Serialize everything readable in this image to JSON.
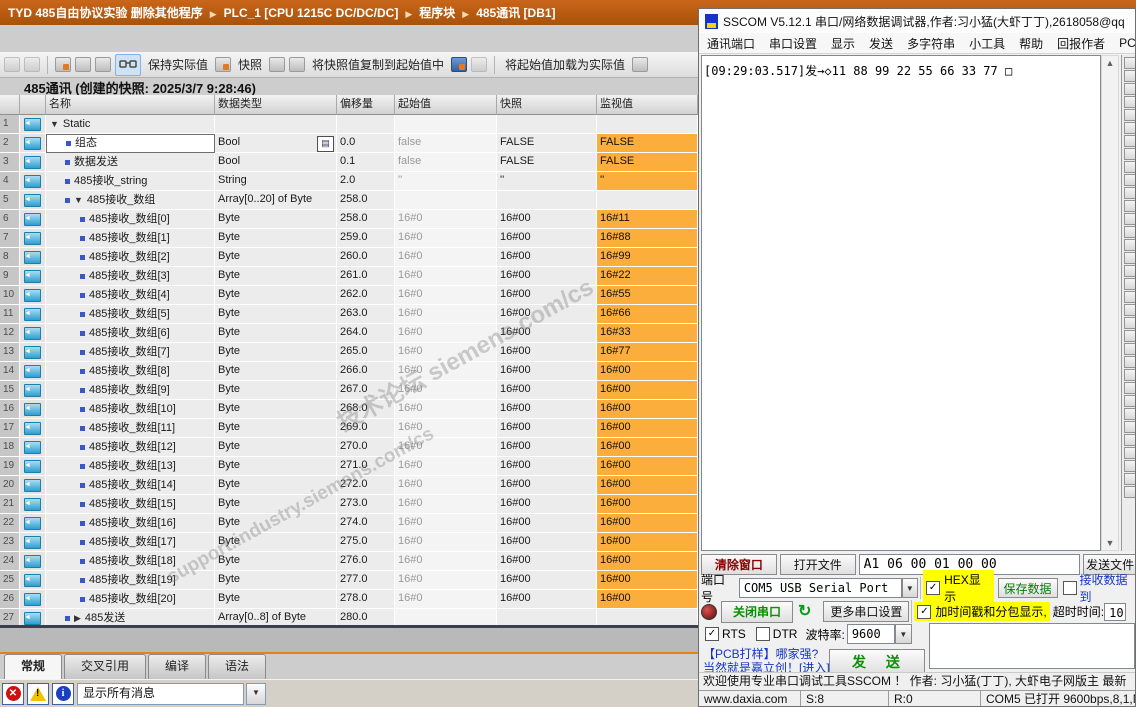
{
  "tia": {
    "breadcrumb": {
      "project": "TYD 485自由协议实验 删除其他程序",
      "items": [
        "PLC_1 [CPU 1215C DC/DC/DC]",
        "程序块",
        "485通讯 [DB1]"
      ]
    },
    "toolbar": {
      "keep_actual": "保持实际值",
      "snapshot": "快照",
      "copy_snapshot": "将快照值复制到起始值中",
      "load_start": "将起始值加载为实际值"
    },
    "title": "485通讯 (创建的快照: 2025/3/7 9:28:46)",
    "table": {
      "headers": [
        "名称",
        "数据类型",
        "偏移量",
        "起始值",
        "快照",
        "监视值"
      ],
      "rows": [
        {
          "n": "1",
          "name": "Static",
          "lvl": 0,
          "arrow": "down",
          "bullet": false,
          "type": "",
          "off": "",
          "start": "",
          "snap": "",
          "mon": null
        },
        {
          "n": "2",
          "name": "组态",
          "lvl": 1,
          "arrow": "",
          "bullet": true,
          "type": "Bool",
          "off": "0.0",
          "start": "false",
          "snap": "FALSE",
          "mon": "FALSE",
          "editing": true
        },
        {
          "n": "3",
          "name": "数据发送",
          "lvl": 1,
          "arrow": "",
          "bullet": true,
          "type": "Bool",
          "off": "0.1",
          "start": "false",
          "snap": "FALSE",
          "mon": "FALSE"
        },
        {
          "n": "4",
          "name": "485接收_string",
          "lvl": 1,
          "arrow": "",
          "bullet": true,
          "type": "String",
          "off": "2.0",
          "start": "''",
          "snap": "''",
          "mon": "''"
        },
        {
          "n": "5",
          "name": "485接收_数组",
          "lvl": 1,
          "arrow": "down",
          "bullet": true,
          "type": "Array[0..20] of Byte",
          "off": "258.0",
          "start": "",
          "snap": "",
          "mon": null
        },
        {
          "n": "6",
          "name": "485接收_数组[0]",
          "lvl": 2,
          "arrow": "",
          "bullet": true,
          "type": "Byte",
          "off": "258.0",
          "start": "16#0",
          "snap": "16#00",
          "mon": "16#11"
        },
        {
          "n": "7",
          "name": "485接收_数组[1]",
          "lvl": 2,
          "arrow": "",
          "bullet": true,
          "type": "Byte",
          "off": "259.0",
          "start": "16#0",
          "snap": "16#00",
          "mon": "16#88"
        },
        {
          "n": "8",
          "name": "485接收_数组[2]",
          "lvl": 2,
          "arrow": "",
          "bullet": true,
          "type": "Byte",
          "off": "260.0",
          "start": "16#0",
          "snap": "16#00",
          "mon": "16#99"
        },
        {
          "n": "9",
          "name": "485接收_数组[3]",
          "lvl": 2,
          "arrow": "",
          "bullet": true,
          "type": "Byte",
          "off": "261.0",
          "start": "16#0",
          "snap": "16#00",
          "mon": "16#22"
        },
        {
          "n": "10",
          "name": "485接收_数组[4]",
          "lvl": 2,
          "arrow": "",
          "bullet": true,
          "type": "Byte",
          "off": "262.0",
          "start": "16#0",
          "snap": "16#00",
          "mon": "16#55"
        },
        {
          "n": "11",
          "name": "485接收_数组[5]",
          "lvl": 2,
          "arrow": "",
          "bullet": true,
          "type": "Byte",
          "off": "263.0",
          "start": "16#0",
          "snap": "16#00",
          "mon": "16#66"
        },
        {
          "n": "12",
          "name": "485接收_数组[6]",
          "lvl": 2,
          "arrow": "",
          "bullet": true,
          "type": "Byte",
          "off": "264.0",
          "start": "16#0",
          "snap": "16#00",
          "mon": "16#33"
        },
        {
          "n": "13",
          "name": "485接收_数组[7]",
          "lvl": 2,
          "arrow": "",
          "bullet": true,
          "type": "Byte",
          "off": "265.0",
          "start": "16#0",
          "snap": "16#00",
          "mon": "16#77"
        },
        {
          "n": "14",
          "name": "485接收_数组[8]",
          "lvl": 2,
          "arrow": "",
          "bullet": true,
          "type": "Byte",
          "off": "266.0",
          "start": "16#0",
          "snap": "16#00",
          "mon": "16#00"
        },
        {
          "n": "15",
          "name": "485接收_数组[9]",
          "lvl": 2,
          "arrow": "",
          "bullet": true,
          "type": "Byte",
          "off": "267.0",
          "start": "16#0",
          "snap": "16#00",
          "mon": "16#00"
        },
        {
          "n": "16",
          "name": "485接收_数组[10]",
          "lvl": 2,
          "arrow": "",
          "bullet": true,
          "type": "Byte",
          "off": "268.0",
          "start": "16#0",
          "snap": "16#00",
          "mon": "16#00"
        },
        {
          "n": "17",
          "name": "485接收_数组[11]",
          "lvl": 2,
          "arrow": "",
          "bullet": true,
          "type": "Byte",
          "off": "269.0",
          "start": "16#0",
          "snap": "16#00",
          "mon": "16#00"
        },
        {
          "n": "18",
          "name": "485接收_数组[12]",
          "lvl": 2,
          "arrow": "",
          "bullet": true,
          "type": "Byte",
          "off": "270.0",
          "start": "16#0",
          "snap": "16#00",
          "mon": "16#00"
        },
        {
          "n": "19",
          "name": "485接收_数组[13]",
          "lvl": 2,
          "arrow": "",
          "bullet": true,
          "type": "Byte",
          "off": "271.0",
          "start": "16#0",
          "snap": "16#00",
          "mon": "16#00"
        },
        {
          "n": "20",
          "name": "485接收_数组[14]",
          "lvl": 2,
          "arrow": "",
          "bullet": true,
          "type": "Byte",
          "off": "272.0",
          "start": "16#0",
          "snap": "16#00",
          "mon": "16#00"
        },
        {
          "n": "21",
          "name": "485接收_数组[15]",
          "lvl": 2,
          "arrow": "",
          "bullet": true,
          "type": "Byte",
          "off": "273.0",
          "start": "16#0",
          "snap": "16#00",
          "mon": "16#00"
        },
        {
          "n": "22",
          "name": "485接收_数组[16]",
          "lvl": 2,
          "arrow": "",
          "bullet": true,
          "type": "Byte",
          "off": "274.0",
          "start": "16#0",
          "snap": "16#00",
          "mon": "16#00"
        },
        {
          "n": "23",
          "name": "485接收_数组[17]",
          "lvl": 2,
          "arrow": "",
          "bullet": true,
          "type": "Byte",
          "off": "275.0",
          "start": "16#0",
          "snap": "16#00",
          "mon": "16#00"
        },
        {
          "n": "24",
          "name": "485接收_数组[18]",
          "lvl": 2,
          "arrow": "",
          "bullet": true,
          "type": "Byte",
          "off": "276.0",
          "start": "16#0",
          "snap": "16#00",
          "mon": "16#00"
        },
        {
          "n": "25",
          "name": "485接收_数组[19]",
          "lvl": 2,
          "arrow": "",
          "bullet": true,
          "type": "Byte",
          "off": "277.0",
          "start": "16#0",
          "snap": "16#00",
          "mon": "16#00"
        },
        {
          "n": "26",
          "name": "485接收_数组[20]",
          "lvl": 2,
          "arrow": "",
          "bullet": true,
          "type": "Byte",
          "off": "278.0",
          "start": "16#0",
          "snap": "16#00",
          "mon": "16#00"
        },
        {
          "n": "27",
          "name": "485发送",
          "lvl": 1,
          "arrow": "right",
          "bullet": true,
          "type": "Array[0..8] of Byte",
          "off": "280.0",
          "start": "",
          "snap": "",
          "mon": null
        }
      ]
    },
    "tabs": [
      {
        "label": "常规",
        "active": true
      },
      {
        "label": "交叉引用",
        "active": false
      },
      {
        "label": "编译",
        "active": false
      },
      {
        "label": "语法",
        "active": false
      }
    ],
    "message_filter": "显示所有消息",
    "watermarks": [
      "技术论坛 siemens.com/cs",
      "support.industry.siemens.com/cs"
    ]
  },
  "sscom": {
    "title": "SSCOM V5.12.1 串口/网络数据调试器,作者:习小猛(大虾丁丁),2618058@qq",
    "menu": [
      "通讯端口",
      "串口设置",
      "显示",
      "发送",
      "多字符串",
      "小工具",
      "帮助",
      "回报作者",
      "PCB"
    ],
    "terminal_line": "[09:29:03.517]发→◇11 88 99 22 55 66 33 77 □",
    "clear_button": "清除窗口",
    "open_file_button": "打开文件",
    "send_file_button": "发送文件",
    "send_input": "A1 06 00 01 00 00",
    "port_label": "端口号",
    "port_value": "COM5 USB Serial Port",
    "hex_display": "HEX显示",
    "save_data": "保存数据",
    "receive_to": "接收数据到",
    "close_port": "关闭串口",
    "more_settings": "更多串口设置",
    "timestamp_split": "加时间戳和分包显示,",
    "timeout_label": "超时时间:",
    "timeout_value": "10",
    "rts": "RTS",
    "dtr": "DTR",
    "baud_label": "波特率:",
    "baud_value": "9600",
    "ad_line1": "【PCB打样】哪家强?",
    "ad_line2": "当然就是嘉立创！[进入]",
    "send_button": "发 送",
    "welcome": "欢迎使用专业串口调试工具SSCOM ！  作者: 习小猛(丁丁), 大虾电子网版主  最新",
    "status": [
      "www.daxia.com",
      "S:8",
      "R:0",
      "COM5 已打开 9600bps,8,1,No"
    ]
  },
  "colors": {
    "breadcrumb_orange": "#b95b10",
    "monitor_orange": "#fbae3c",
    "highlight_yellow": "#ffff00",
    "tab_divider_orange": "#e8820c"
  }
}
